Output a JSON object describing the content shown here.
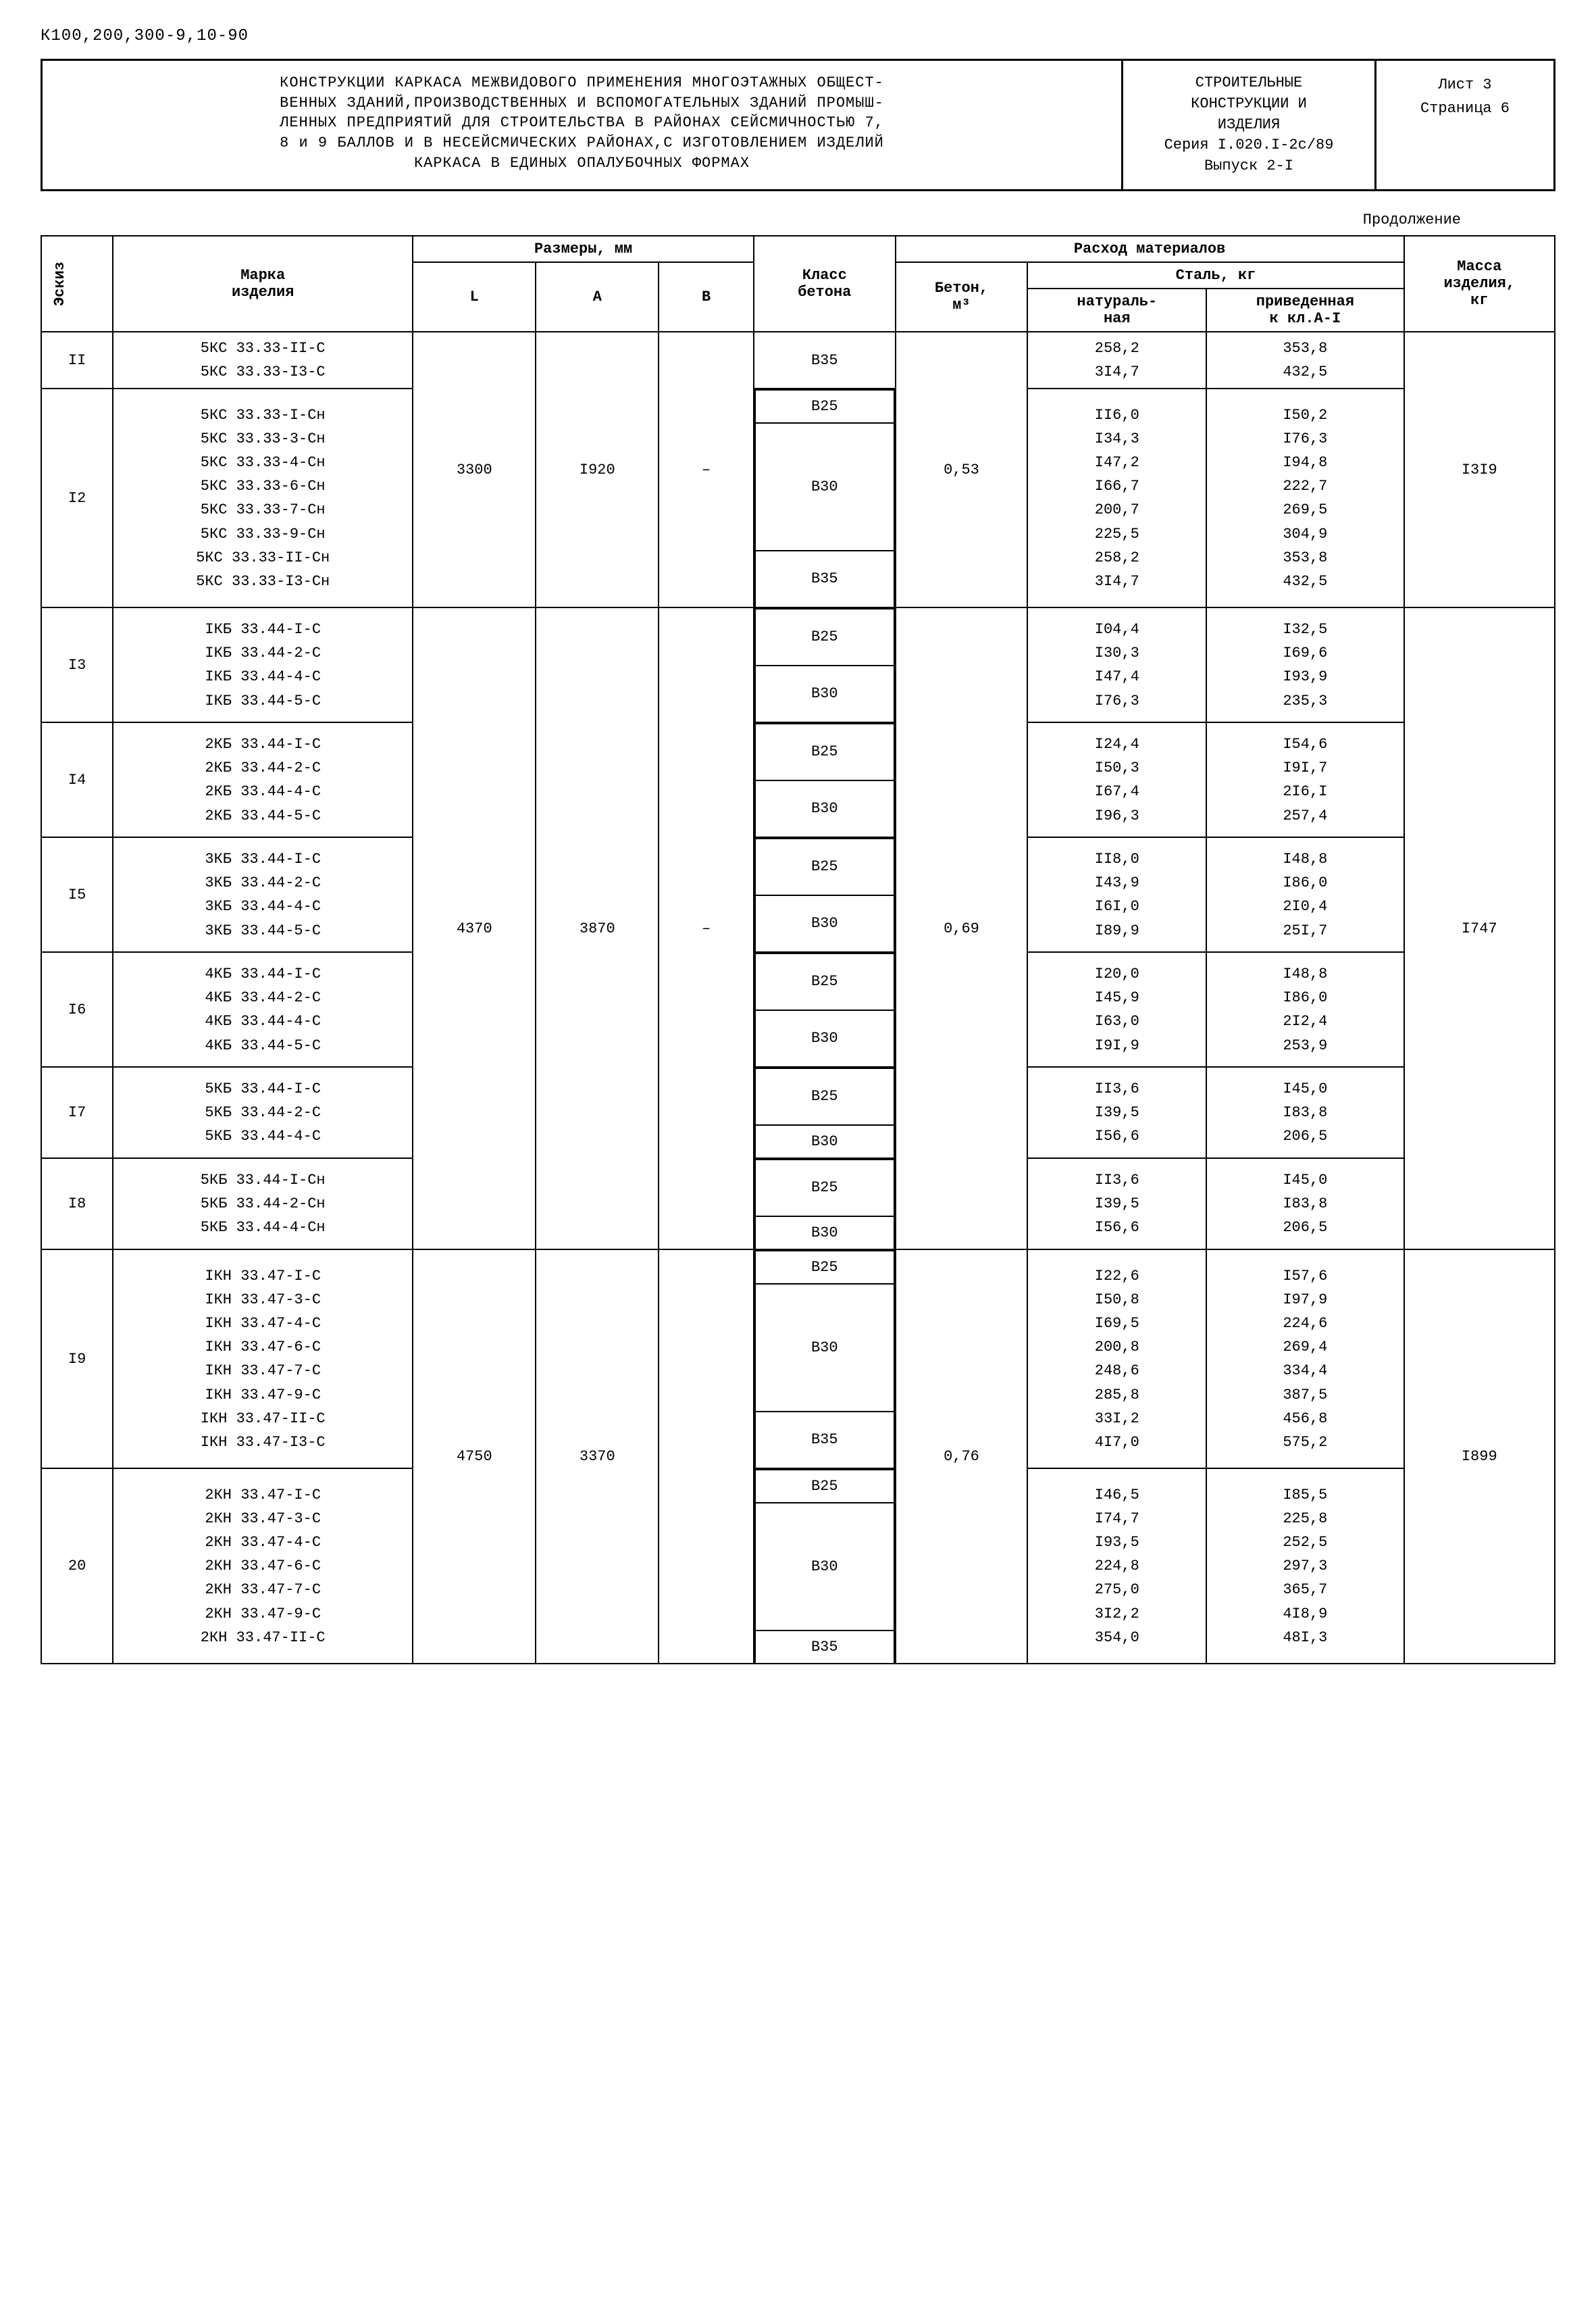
{
  "doc_code": "К100,200,300-9,10-90",
  "header": {
    "left": "КОНСТРУКЦИИ КАРКАСА МЕЖВИДОВОГО ПРИМЕНЕНИЯ МНОГОЭТАЖНЫХ ОБЩЕСТ-\nВЕННЫХ ЗДАНИЙ,ПРОИЗВОДСТВЕННЫХ И ВСПОМОГАТЕЛЬНЫХ ЗДАНИЙ ПРОМЫШ-\nЛЕННЫХ ПРЕДПРИЯТИЙ ДЛЯ СТРОИТЕЛЬСТВА В РАЙОНАХ СЕЙСМИЧНОСТЬЮ 7,\n8 и 9 БАЛЛОВ И В НЕСЕЙСМИЧЕСКИХ РАЙОНАХ,С ИЗГОТОВЛЕНИЕМ ИЗДЕЛИЙ\nКАРКАСА В ЕДИНЫХ ОПАЛУБОЧНЫХ ФОРМАХ",
    "mid": "СТРОИТЕЛЬНЫЕ\nКОНСТРУКЦИИ И\nИЗДЕЛИЯ\nСерия I.020.I-2с/89\nВыпуск 2-I",
    "right_sheet": "Лист 3",
    "right_page": "Страница 6"
  },
  "continuation": "Продолжение",
  "columns": {
    "eskiz": "Эскиз",
    "marka": "Марка\nизделия",
    "razmery": "Размеры, мм",
    "L": "L",
    "A": "A",
    "B": "B",
    "klass": "Класс\nбетона",
    "rashod": "Расход материалов",
    "beton": "Бетон,\nм³",
    "stal": "Сталь, кг",
    "nat": "натураль-\nная",
    "priv": "приведенная\nк кл.А-I",
    "massa": "Масса\nизделия,\nкг"
  },
  "group1": {
    "L": "3300",
    "A": "I920",
    "B": "–",
    "beton": "0,53",
    "massa": "I3I9",
    "rows": [
      {
        "eskiz": "II",
        "marka": "5КС 33.33-II-С\n5КС 33.33-I3-С",
        "klass": "В35",
        "nat": "258,2\n3I4,7",
        "priv": "353,8\n432,5"
      },
      {
        "eskiz": "I2",
        "marka": "5КС 33.33-I-Сн\n5КС 33.33-3-Сн\n5КС 33.33-4-Сн\n5КС 33.33-6-Сн\n5КС 33.33-7-Сн\n5КС 33.33-9-Сн\n5КС 33.33-II-Сн\n5КС 33.33-I3-Сн",
        "klass_blocks": [
          {
            "label": "В25",
            "n": 1
          },
          {
            "label": "В30",
            "n": 5
          },
          {
            "label": "В35",
            "n": 2
          }
        ],
        "nat": "II6,0\nI34,3\nI47,2\nI66,7\n200,7\n225,5\n258,2\n3I4,7",
        "priv": "I50,2\nI76,3\nI94,8\n222,7\n269,5\n304,9\n353,8\n432,5"
      }
    ]
  },
  "group2": {
    "L": "4370",
    "A": "3870",
    "B": "–",
    "beton": "0,69",
    "massa": "I747",
    "rows": [
      {
        "eskiz": "I3",
        "marka": "IКБ 33.44-I-С\nIКБ 33.44-2-С\nIКБ 33.44-4-С\nIКБ 33.44-5-С",
        "klass_blocks": [
          {
            "label": "В25",
            "n": 2
          },
          {
            "label": "В30",
            "n": 2
          }
        ],
        "nat": "I04,4\nI30,3\nI47,4\nI76,3",
        "priv": "I32,5\nI69,6\nI93,9\n235,3"
      },
      {
        "eskiz": "I4",
        "marka": "2КБ 33.44-I-С\n2КБ 33.44-2-С\n2КБ 33.44-4-С\n2КБ 33.44-5-С",
        "klass_blocks": [
          {
            "label": "В25",
            "n": 2
          },
          {
            "label": "В30",
            "n": 2
          }
        ],
        "nat": "I24,4\nI50,3\nI67,4\nI96,3",
        "priv": "I54,6\nI9I,7\n2I6,I\n257,4"
      },
      {
        "eskiz": "I5",
        "marka": "3КБ 33.44-I-С\n3КБ 33.44-2-С\n3КБ 33.44-4-С\n3КБ 33.44-5-С",
        "klass_blocks": [
          {
            "label": "В25",
            "n": 2
          },
          {
            "label": "В30",
            "n": 2
          }
        ],
        "nat": "II8,0\nI43,9\nI6I,0\nI89,9",
        "priv": "I48,8\nI86,0\n2I0,4\n25I,7"
      },
      {
        "eskiz": "I6",
        "marka": "4КБ 33.44-I-С\n4КБ 33.44-2-С\n4КБ 33.44-4-С\n4КБ 33.44-5-С",
        "klass_blocks": [
          {
            "label": "В25",
            "n": 2
          },
          {
            "label": "В30",
            "n": 2
          }
        ],
        "nat": "I20,0\nI45,9\nI63,0\nI9I,9",
        "priv": "I48,8\nI86,0\n2I2,4\n253,9"
      },
      {
        "eskiz": "I7",
        "marka": "5КБ 33.44-I-С\n5КБ 33.44-2-С\n5КБ 33.44-4-С",
        "klass_blocks": [
          {
            "label": "В25",
            "n": 2
          },
          {
            "label": "В30",
            "n": 1
          }
        ],
        "nat": "II3,6\nI39,5\nI56,6",
        "priv": "I45,0\nI83,8\n206,5"
      },
      {
        "eskiz": "I8",
        "marka": "5КБ 33.44-I-Сн\n5КБ 33.44-2-Сн\n5КБ 33.44-4-Сн",
        "klass_blocks": [
          {
            "label": "В25",
            "n": 2
          },
          {
            "label": "В30",
            "n": 1
          }
        ],
        "nat": "II3,6\nI39,5\nI56,6",
        "priv": "I45,0\nI83,8\n206,5"
      }
    ]
  },
  "group3": {
    "L": "4750",
    "A": "3370",
    "B": "",
    "beton": "0,76",
    "massa": "I899",
    "rows": [
      {
        "eskiz": "I9",
        "marka": "IКН 33.47-I-С\nIКН 33.47-3-С\nIКН 33.47-4-С\nIКН 33.47-6-С\nIКН 33.47-7-С\nIКН 33.47-9-С\nIКН 33.47-II-С\nIКН 33.47-I3-С",
        "klass_blocks": [
          {
            "label": "В25",
            "n": 1
          },
          {
            "label": "В30",
            "n": 5
          },
          {
            "label": "В35",
            "n": 2
          }
        ],
        "nat": "I22,6\nI50,8\nI69,5\n200,8\n248,6\n285,8\n33I,2\n4I7,0",
        "priv": "I57,6\nI97,9\n224,6\n269,4\n334,4\n387,5\n456,8\n575,2"
      },
      {
        "eskiz": "20",
        "marka": "2КН 33.47-I-С\n2КН 33.47-3-С\n2КН 33.47-4-С\n2КН 33.47-6-С\n2КН 33.47-7-С\n2КН 33.47-9-С\n2КН 33.47-II-С",
        "klass_blocks": [
          {
            "label": "В25",
            "n": 1
          },
          {
            "label": "В30",
            "n": 5
          },
          {
            "label": "В35",
            "n": 1
          }
        ],
        "nat": "I46,5\nI74,7\nI93,5\n224,8\n275,0\n3I2,2\n354,0",
        "priv": "I85,5\n225,8\n252,5\n297,3\n365,7\n4I8,9\n48I,3"
      }
    ]
  }
}
